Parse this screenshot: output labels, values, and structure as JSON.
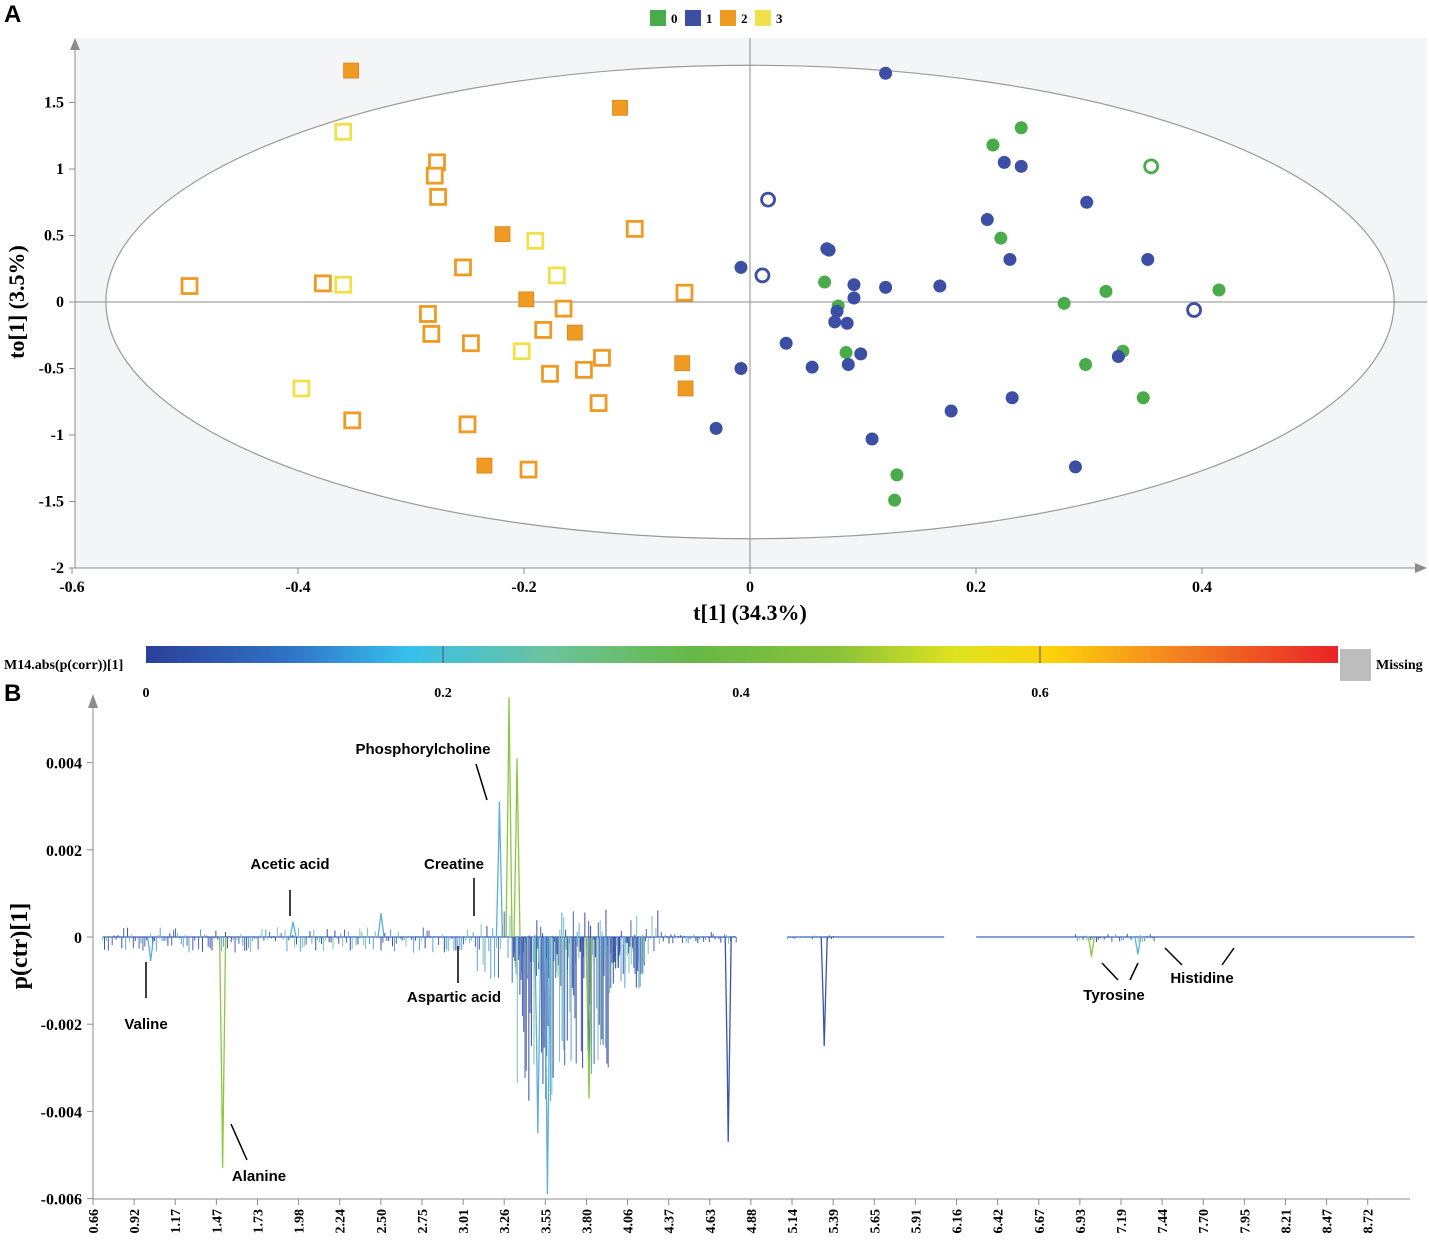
{
  "chart_data": [
    {
      "panel": "A",
      "type": "scatter",
      "xlabel": "t[1] (34.3%)",
      "ylabel": "to[1] (3.5%)",
      "xlim": [
        -0.6,
        0.6
      ],
      "ylim": [
        -2,
        1.9
      ],
      "xticks": [
        "-0.6",
        "-0.4",
        "-0.2",
        "0",
        "0.2",
        "0.4"
      ],
      "yticks": [
        "-2",
        "-1.5",
        "-1",
        "-0.5",
        "0",
        "0.5",
        "1",
        "1.5"
      ],
      "ellipse": {
        "rx": 0.57,
        "ry": 1.78,
        "stroke": "#9a9a9a"
      },
      "legend": {
        "position": "top-center",
        "entries": [
          "0",
          "1",
          "2",
          "3"
        ]
      },
      "series": [
        {
          "name": "0",
          "color": "#4aab4a",
          "marker": "circle",
          "points": [
            [
              0.24,
              1.31
            ],
            [
              0.215,
              1.18
            ],
            [
              0.222,
              0.48
            ],
            [
              0.415,
              0.09
            ],
            [
              0.315,
              0.08
            ],
            [
              0.278,
              -0.01
            ],
            [
              0.066,
              0.15
            ],
            [
              0.078,
              -0.03
            ],
            [
              0.085,
              -0.38
            ],
            [
              0.297,
              -0.47
            ],
            [
              0.33,
              -0.37
            ],
            [
              0.348,
              -0.72
            ],
            [
              0.13,
              -1.3
            ],
            [
              0.128,
              -1.49
            ]
          ],
          "open_points": [
            [
              0.355,
              1.02
            ]
          ]
        },
        {
          "name": "1",
          "color": "#3d4fa5",
          "marker": "circle",
          "points": [
            [
              0.12,
              1.72
            ],
            [
              0.225,
              1.05
            ],
            [
              0.24,
              1.02
            ],
            [
              0.298,
              0.75
            ],
            [
              0.21,
              0.62
            ],
            [
              0.23,
              0.32
            ],
            [
              0.352,
              0.32
            ],
            [
              0.068,
              0.4
            ],
            [
              0.07,
              0.39
            ],
            [
              -0.008,
              0.26
            ],
            [
              0.092,
              0.13
            ],
            [
              0.12,
              0.11
            ],
            [
              0.168,
              0.12
            ],
            [
              0.092,
              0.03
            ],
            [
              0.077,
              -0.07
            ],
            [
              0.075,
              -0.15
            ],
            [
              0.086,
              -0.16
            ],
            [
              0.032,
              -0.31
            ],
            [
              0.098,
              -0.39
            ],
            [
              0.055,
              -0.49
            ],
            [
              0.087,
              -0.47
            ],
            [
              -0.008,
              -0.5
            ],
            [
              0.326,
              -0.41
            ],
            [
              0.178,
              -0.82
            ],
            [
              0.232,
              -0.72
            ],
            [
              -0.03,
              -0.95
            ],
            [
              0.108,
              -1.03
            ],
            [
              0.288,
              -1.24
            ]
          ],
          "open_points": [
            [
              0.016,
              0.77
            ],
            [
              0.011,
              0.2
            ],
            [
              0.393,
              -0.06
            ]
          ]
        },
        {
          "name": "2",
          "color": "#ef9a22",
          "marker": "square",
          "points": [
            [
              -0.353,
              1.74
            ],
            [
              -0.115,
              1.46
            ],
            [
              -0.219,
              0.51
            ],
            [
              -0.198,
              0.02
            ],
            [
              -0.155,
              -0.23
            ],
            [
              -0.06,
              -0.46
            ],
            [
              -0.057,
              -0.65
            ],
            [
              -0.235,
              -1.23
            ]
          ],
          "open_points": [
            [
              -0.277,
              1.05
            ],
            [
              -0.279,
              0.95
            ],
            [
              -0.276,
              0.79
            ],
            [
              -0.102,
              0.55
            ],
            [
              -0.254,
              0.26
            ],
            [
              -0.496,
              0.12
            ],
            [
              -0.378,
              0.14
            ],
            [
              -0.058,
              0.07
            ],
            [
              -0.165,
              -0.05
            ],
            [
              -0.285,
              -0.09
            ],
            [
              -0.282,
              -0.24
            ],
            [
              -0.183,
              -0.21
            ],
            [
              -0.247,
              -0.31
            ],
            [
              -0.131,
              -0.42
            ],
            [
              -0.147,
              -0.51
            ],
            [
              -0.177,
              -0.54
            ],
            [
              -0.134,
              -0.76
            ],
            [
              -0.352,
              -0.89
            ],
            [
              -0.25,
              -0.92
            ],
            [
              -0.196,
              -1.26
            ]
          ]
        },
        {
          "name": "3",
          "color": "#f2e04a",
          "marker": "square",
          "points": [],
          "open_points": [
            [
              -0.36,
              1.28
            ],
            [
              -0.19,
              0.46
            ],
            [
              -0.171,
              0.2
            ],
            [
              -0.36,
              0.13
            ],
            [
              -0.202,
              -0.37
            ],
            [
              -0.397,
              -0.65
            ]
          ]
        }
      ]
    },
    {
      "panel": "B",
      "type": "line",
      "ylabel": "p(ctr)[1]",
      "xlim": [
        0.66,
        8.9
      ],
      "ylim": [
        -0.006,
        0.0055
      ],
      "yticks": [
        "0.004",
        "0.002",
        "0",
        "-0.002",
        "-0.004",
        "-0.006"
      ],
      "xticks": [
        "0.66",
        "0.92",
        "1.17",
        "1.47",
        "1.73",
        "1.98",
        "2.24",
        "2.50",
        "2.75",
        "3.01",
        "3.26",
        "3.55",
        "3.80",
        "4.06",
        "4.37",
        "4.63",
        "4.88",
        "5.14",
        "5.39",
        "5.65",
        "5.91",
        "6.16",
        "6.42",
        "6.67",
        "6.93",
        "7.19",
        "7.44",
        "7.70",
        "7.95",
        "8.21",
        "8.47",
        "8.72"
      ],
      "colorbar": {
        "label": "M14.abs(p(corr))[1]",
        "ticks": [
          "0",
          "0.2",
          "0.4",
          "0.6"
        ],
        "missing_label": "Missing",
        "missing_color": "#bdbdbd"
      },
      "spectrum_peaks": [
        {
          "ppm": 1.02,
          "value": -0.00055
        },
        {
          "ppm": 1.47,
          "value": -0.0053
        },
        {
          "ppm": 1.91,
          "value": 0.00035
        },
        {
          "ppm": 2.46,
          "value": 0.00055
        },
        {
          "ppm": 3.2,
          "value": 0.0031
        },
        {
          "ppm": 3.26,
          "value": 0.0055
        },
        {
          "ppm": 3.31,
          "value": 0.0041
        },
        {
          "ppm": 3.44,
          "value": -0.0045
        },
        {
          "ppm": 3.5,
          "value": -0.0059
        },
        {
          "ppm": 3.76,
          "value": -0.0037
        },
        {
          "ppm": 4.63,
          "value": -0.0047
        },
        {
          "ppm": 5.23,
          "value": -0.0025
        },
        {
          "ppm": 6.9,
          "value": -0.00045
        },
        {
          "ppm": 7.19,
          "value": -0.0004
        }
      ],
      "annotations": [
        {
          "label": "Phosphorylcholine",
          "ppm": 3.2,
          "value": 0.0032
        },
        {
          "label": "Acetic acid",
          "ppm": 1.91,
          "value": 0.0005
        },
        {
          "label": "Creatine",
          "ppm": 3.04,
          "value": 0.0005
        },
        {
          "label": "Valine",
          "ppm": 1.02,
          "value": -0.0008
        },
        {
          "label": "Aspartic acid",
          "ppm": 2.82,
          "value": -0.0005
        },
        {
          "label": "Alanine",
          "ppm": 1.5,
          "value": -0.0045
        },
        {
          "label": "Tyrosine",
          "ppm": 7.1,
          "value": -0.0005
        },
        {
          "label": "Histidine",
          "ppm": 7.65,
          "value": -0.0002
        }
      ]
    }
  ],
  "panel_labels": [
    "A",
    "B"
  ]
}
